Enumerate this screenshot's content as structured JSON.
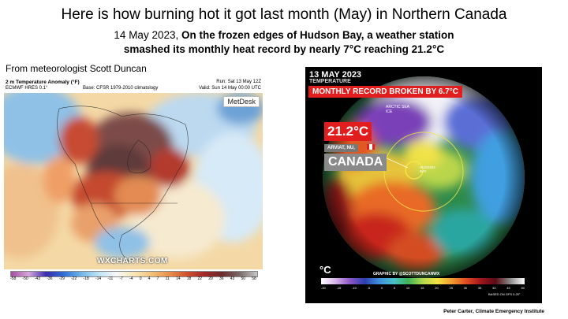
{
  "title": "Here is how burning hot it got last month (May) in Northern Canada",
  "subtitle": {
    "date": "14 May 2023,",
    "line1_bold": "On the frozen edges of Hudson Bay, a weather station",
    "line2_bold": "smashed its monthly heat record by nearly 7°C reaching 21.2°C"
  },
  "left_credit": "From meteorologist Scott Duncan",
  "bottom_credit": "Peter Carter, Climate Emergency Institute",
  "left_map": {
    "title": "2 m Temperature Anomaly (°F)",
    "model": "ECMWF HRES 0.1°",
    "base": "Base: CFSR 1979-2010 climatology",
    "run": "Run: Sat 13 May 12Z",
    "valid": "Valid: Sun 14 May 00:00 UTC",
    "brand": "MetDesk",
    "watermark": "WXCHARTS.COM",
    "colorbar_ticks": [
      "-58",
      "-50",
      "-43",
      "-36",
      "-29",
      "-22",
      "-18",
      "-14",
      "-11",
      "-7",
      "-4",
      "0",
      "4",
      "7",
      "11",
      "14",
      "18",
      "22",
      "29",
      "36",
      "43",
      "50",
      "58"
    ]
  },
  "right_map": {
    "date": "13 MAY 2023",
    "variable": "TEMPERATURE",
    "record_banner": "MONTHLY RECORD BROKEN BY 6.7°C",
    "temp_value": "21.2°C",
    "station": "ARVIAT, NU,",
    "country": "CANADA",
    "arctic_label": "ARCTIC SEA ICE",
    "hudson_label": "HUDSON BAY",
    "unit": "°C",
    "graphic_by": "GRAPHIC BY @SCOTTDUNCANWX",
    "based_on": "BASED ON GFS 0.25°",
    "colorbar_ticks": [
      "-20",
      "-15",
      "-10",
      "-5",
      "0",
      "5",
      "10",
      "15",
      "20",
      "25",
      "30",
      "35",
      "40",
      "45",
      "50"
    ]
  },
  "colors": {
    "record_red": "#e21d1d",
    "canada_grey": "#8a8a8a"
  }
}
